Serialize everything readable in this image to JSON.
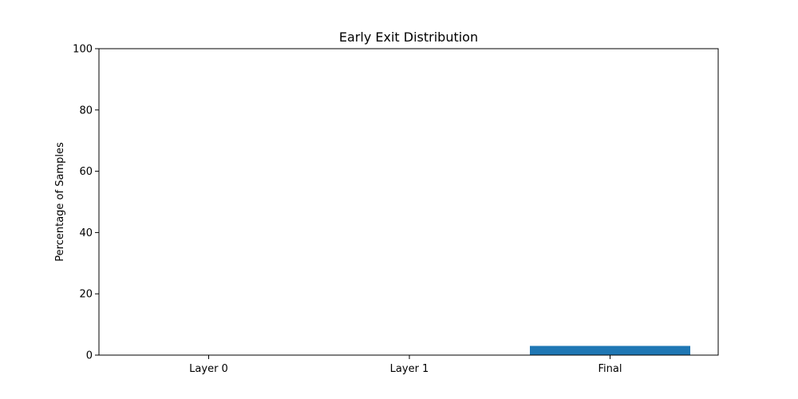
{
  "chart_data": {
    "type": "bar",
    "title": "Early Exit Distribution",
    "xlabel": "",
    "ylabel": "Percentage of Samples",
    "categories": [
      "Layer 0",
      "Layer 1",
      "Final"
    ],
    "values": [
      0,
      0,
      3
    ],
    "ylim": [
      0,
      100
    ],
    "yticks": [
      0,
      20,
      40,
      60,
      80,
      100
    ],
    "grid": false,
    "bar_color": "#1f77b4"
  }
}
